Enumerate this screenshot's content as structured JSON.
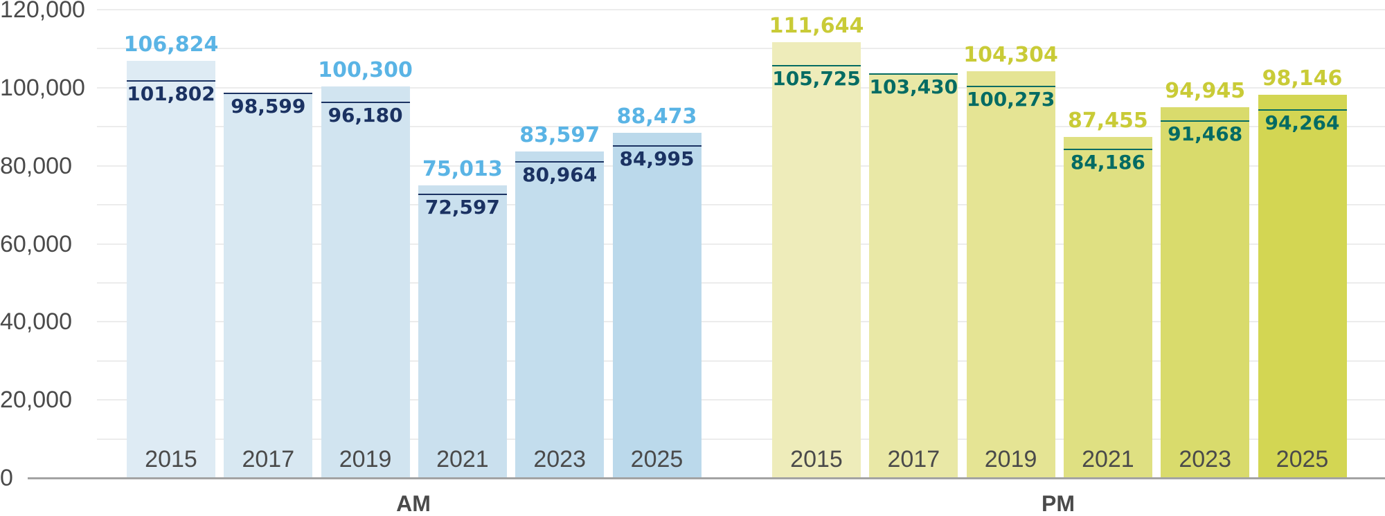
{
  "chart_data": {
    "type": "bar",
    "title": "",
    "xlabel": "",
    "ylabel": "",
    "ylim": [
      0,
      120000
    ],
    "yticks": [
      0,
      20000,
      40000,
      60000,
      80000,
      100000,
      120000
    ],
    "ytick_labels": [
      "0",
      "20,000",
      "40,000",
      "60,000",
      "80,000",
      "100,000",
      "120,000"
    ],
    "grid": true,
    "groups": [
      {
        "name": "AM",
        "categories": [
          "2015",
          "2017",
          "2019",
          "2021",
          "2023",
          "2025"
        ],
        "series": [
          {
            "name": "bar value",
            "values": [
              106824,
              null,
              100300,
              75013,
              83597,
              88473
            ]
          },
          {
            "name": "line value",
            "values": [
              101802,
              98599,
              96180,
              72597,
              80964,
              84995
            ]
          }
        ],
        "top_labels": [
          "106,824",
          "",
          "100,300",
          "75,013",
          "83,597",
          "88,473"
        ],
        "line_labels": [
          "101,802",
          "98,599",
          "96,180",
          "72,597",
          "80,964",
          "84,995"
        ],
        "bar_heights": [
          106824,
          98599,
          100300,
          75013,
          83597,
          88473
        ],
        "bar_colors": [
          "#deebf4",
          "#d8e8f2",
          "#d1e4f0",
          "#cae0ee",
          "#c3dded",
          "#bbd9eb"
        ],
        "top_label_color": "#5ab4e5",
        "line_color": "#1b3262"
      },
      {
        "name": "PM",
        "categories": [
          "2015",
          "2017",
          "2019",
          "2021",
          "2023",
          "2025"
        ],
        "series": [
          {
            "name": "bar value",
            "values": [
              111644,
              null,
              104304,
              87455,
              94945,
              98146
            ]
          },
          {
            "name": "line value",
            "values": [
              105725,
              103430,
              100273,
              84186,
              91468,
              94264
            ]
          }
        ],
        "top_labels": [
          "111,644",
          "",
          "104,304",
          "87,455",
          "94,945",
          "98,146"
        ],
        "line_labels": [
          "105,725",
          "103,430",
          "100,273",
          "84,186",
          "91,468",
          "94,264"
        ],
        "bar_heights": [
          111644,
          103430,
          104304,
          87455,
          94945,
          98146
        ],
        "bar_colors": [
          "#eeecba",
          "#e9e8a6",
          "#e5e494",
          "#dfe082",
          "#d9db6c",
          "#d3d653"
        ],
        "top_label_color": "#c9cb37",
        "line_color": "#046b63"
      }
    ]
  },
  "axis": {
    "group_labels": [
      "AM",
      "PM"
    ]
  }
}
